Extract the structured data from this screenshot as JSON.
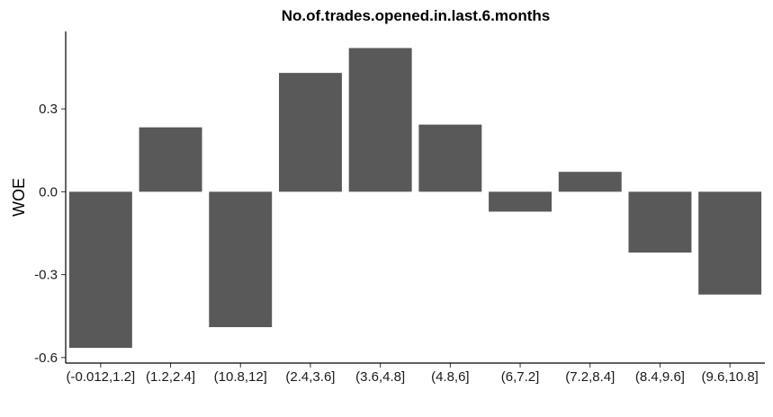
{
  "chart_data": {
    "type": "bar",
    "title": "No.of.trades.opened.in.last.6.months",
    "xlabel": "",
    "ylabel": "WOE",
    "categories": [
      "(-0.012,1.2]",
      "(1.2,2.4]",
      "(10.8,12]",
      "(2.4,3.6]",
      "(3.6,4.8]",
      "(4.8,6]",
      "(6,7.2]",
      "(7.2,8.4]",
      "(8.4,9.6]",
      "(9.6,10.8]"
    ],
    "values": [
      -0.565,
      0.233,
      -0.49,
      0.43,
      0.52,
      0.243,
      -0.072,
      0.072,
      -0.22,
      -0.372
    ],
    "ylim": [
      -0.62,
      0.58
    ],
    "yticks": [
      -0.6,
      -0.3,
      0.0,
      0.3
    ],
    "ytick_labels": [
      "-0.6",
      "-0.3",
      "0.0",
      "0.3"
    ],
    "bar_color": "#595959",
    "grid": false,
    "legend": "none"
  }
}
